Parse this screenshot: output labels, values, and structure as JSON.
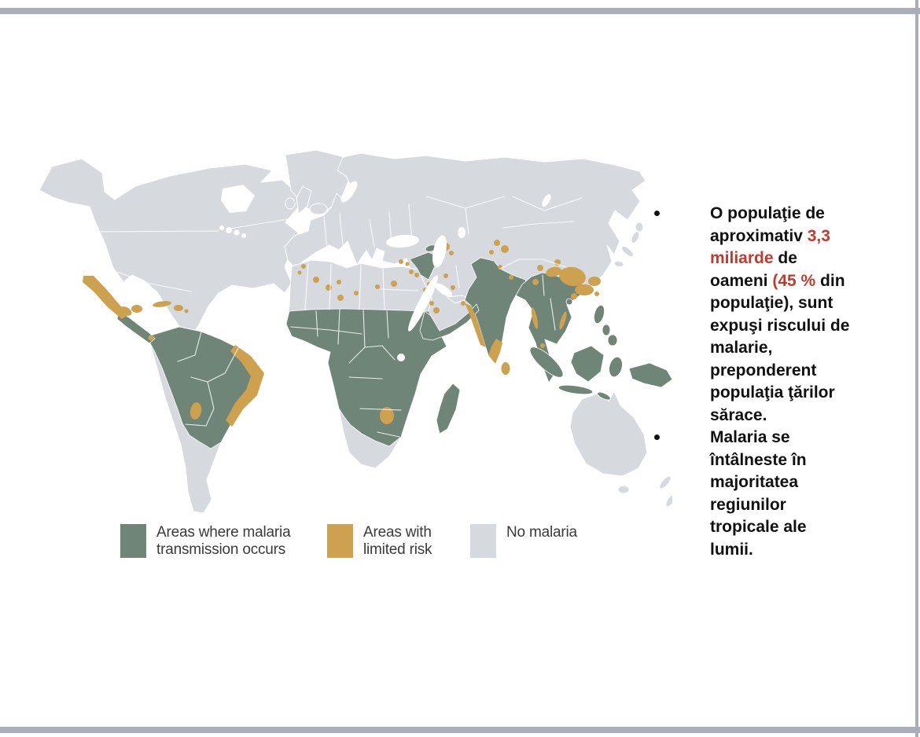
{
  "slide": {
    "colors": {
      "frame": "#a9aeb8",
      "text": "#111111",
      "red": "#c23b2d",
      "green": "#6e8577",
      "tan": "#cda14e",
      "gray_land": "#d6d9de",
      "legend_text": "#3a3a3a"
    }
  },
  "map": {
    "legend": [
      {
        "label": "Areas where malaria\ntransmission occurs",
        "color": "#6e8577"
      },
      {
        "label": "Areas with\nlimited risk",
        "color": "#cda14e"
      },
      {
        "label": "No malaria",
        "color": "#d6d9de"
      }
    ],
    "regions_note": "world map: malaria transmission (green), limited risk (tan), no malaria (gray)"
  },
  "bullets": [
    {
      "lines": [
        [
          {
            "t": "O populaţie de"
          }
        ],
        [
          {
            "t": "aproximativ "
          },
          {
            "t": "3,3",
            "red": true
          }
        ],
        [
          {
            "t": "miliarde",
            "red": true
          },
          {
            "t": " de"
          }
        ],
        [
          {
            "t": "oameni "
          },
          {
            "t": "(45 %",
            "red": true
          },
          {
            "t": " din"
          }
        ],
        [
          {
            "t": "populaţie), sunt"
          }
        ],
        [
          {
            "t": "expuşi riscului de"
          }
        ],
        [
          {
            "t": "malarie,"
          }
        ],
        [
          {
            "t": "preponderent"
          }
        ],
        [
          {
            "t": "populaţia ţărilor"
          }
        ],
        [
          {
            "t": "sărace."
          }
        ]
      ]
    },
    {
      "lines": [
        [
          {
            "t": "Malaria se"
          }
        ],
        [
          {
            "t": "întâlneste în"
          }
        ],
        [
          {
            "t": "majoritatea"
          }
        ],
        [
          {
            "t": "regiunilor"
          }
        ],
        [
          {
            "t": "tropicale ale"
          }
        ],
        [
          {
            "t": "lumii."
          }
        ]
      ]
    }
  ]
}
